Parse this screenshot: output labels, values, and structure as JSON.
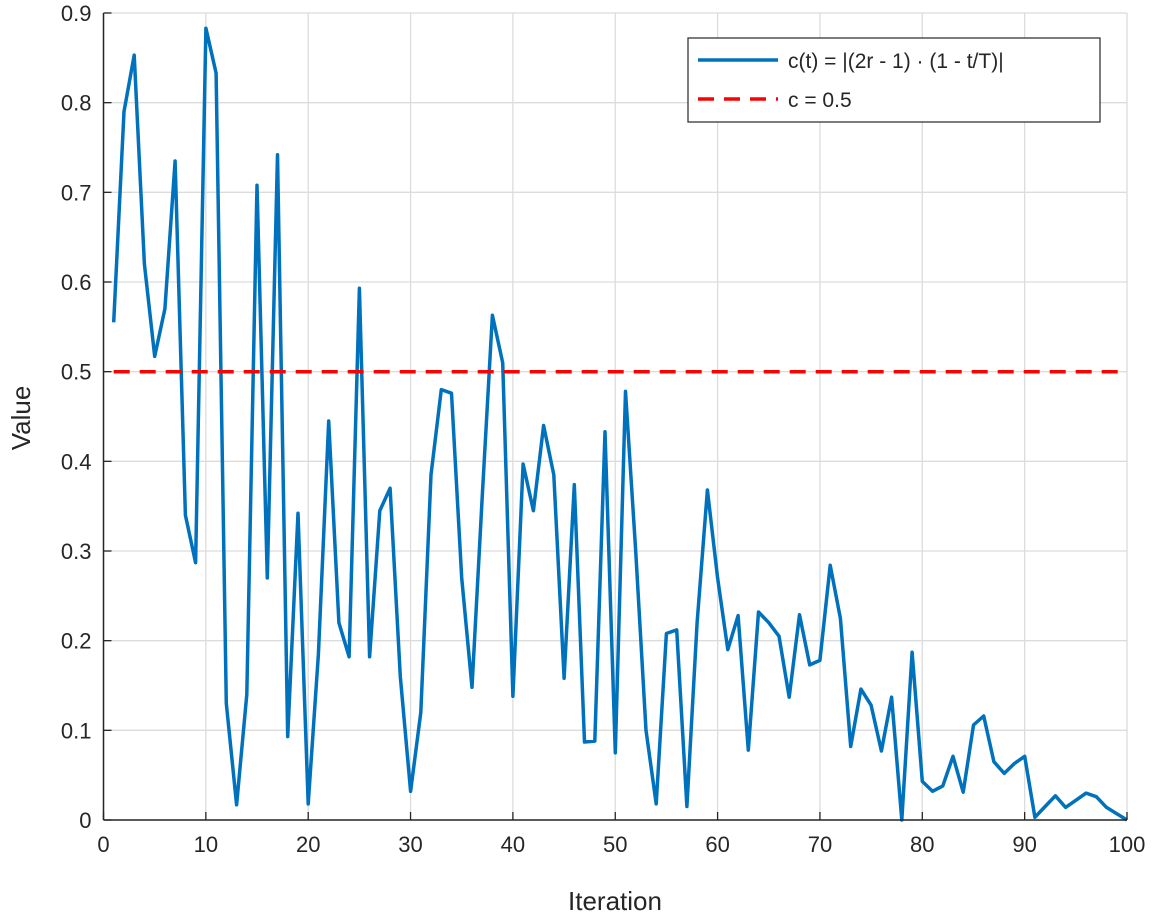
{
  "chart_data": {
    "type": "line",
    "title": "",
    "xlabel": "Iteration",
    "ylabel": "Value",
    "xlim": [
      0,
      100
    ],
    "ylim": [
      0,
      0.9
    ],
    "xticks": [
      0,
      10,
      20,
      30,
      40,
      50,
      60,
      70,
      80,
      90,
      100
    ],
    "yticks": [
      0,
      0.1,
      0.2,
      0.3,
      0.4,
      0.5,
      0.6,
      0.7,
      0.8,
      0.9
    ],
    "xtick_labels": [
      "0",
      "10",
      "20",
      "30",
      "40",
      "50",
      "60",
      "70",
      "80",
      "90",
      "100"
    ],
    "ytick_labels": [
      "0",
      "0.1",
      "0.2",
      "0.3",
      "0.4",
      "0.5",
      "0.6",
      "0.7",
      "0.8",
      "0.9"
    ],
    "grid": true,
    "legend_position": "top-right",
    "series": [
      {
        "name": "c(t) = |(2r - 1) · (1 - t/T)|",
        "color": "#0072BD",
        "style": "solid",
        "x": [
          1,
          2,
          3,
          4,
          5,
          6,
          7,
          8,
          9,
          10,
          11,
          12,
          13,
          14,
          15,
          16,
          17,
          18,
          19,
          20,
          21,
          22,
          23,
          24,
          25,
          26,
          27,
          28,
          29,
          30,
          31,
          32,
          33,
          34,
          35,
          36,
          37,
          38,
          39,
          40,
          41,
          42,
          43,
          44,
          45,
          46,
          47,
          48,
          49,
          50,
          51,
          52,
          53,
          54,
          55,
          56,
          57,
          58,
          59,
          60,
          61,
          62,
          63,
          64,
          65,
          66,
          67,
          68,
          69,
          70,
          71,
          72,
          73,
          74,
          75,
          76,
          77,
          78,
          79,
          80,
          81,
          82,
          83,
          84,
          85,
          86,
          87,
          88,
          89,
          90,
          91,
          92,
          93,
          94,
          95,
          96,
          97,
          98,
          99,
          100
        ],
        "values": [
          0.555,
          0.79,
          0.853,
          0.62,
          0.517,
          0.57,
          0.735,
          0.34,
          0.287,
          0.883,
          0.833,
          0.13,
          0.017,
          0.14,
          0.708,
          0.27,
          0.742,
          0.093,
          0.342,
          0.018,
          0.185,
          0.445,
          0.22,
          0.182,
          0.593,
          0.182,
          0.345,
          0.37,
          0.16,
          0.032,
          0.12,
          0.385,
          0.48,
          0.476,
          0.27,
          0.148,
          0.36,
          0.563,
          0.51,
          0.138,
          0.397,
          0.345,
          0.44,
          0.385,
          0.158,
          0.374,
          0.087,
          0.088,
          0.433,
          0.075,
          0.478,
          0.3,
          0.1,
          0.018,
          0.208,
          0.212,
          0.015,
          0.22,
          0.368,
          0.27,
          0.19,
          0.228,
          0.078,
          0.232,
          0.22,
          0.205,
          0.137,
          0.229,
          0.173,
          0.178,
          0.284,
          0.225,
          0.082,
          0.146,
          0.128,
          0.077,
          0.137,
          0.0,
          0.187,
          0.043,
          0.032,
          0.038,
          0.071,
          0.031,
          0.106,
          0.116,
          0.065,
          0.052,
          0.063,
          0.071,
          0.003,
          0.015,
          0.027,
          0.014,
          0.022,
          0.03,
          0.026,
          0.014,
          0.007,
          0.0
        ]
      },
      {
        "name": "c = 0.5",
        "color": "#FF0000",
        "style": "dashed",
        "x": [
          1,
          100
        ],
        "values": [
          0.5,
          0.5
        ]
      }
    ]
  }
}
